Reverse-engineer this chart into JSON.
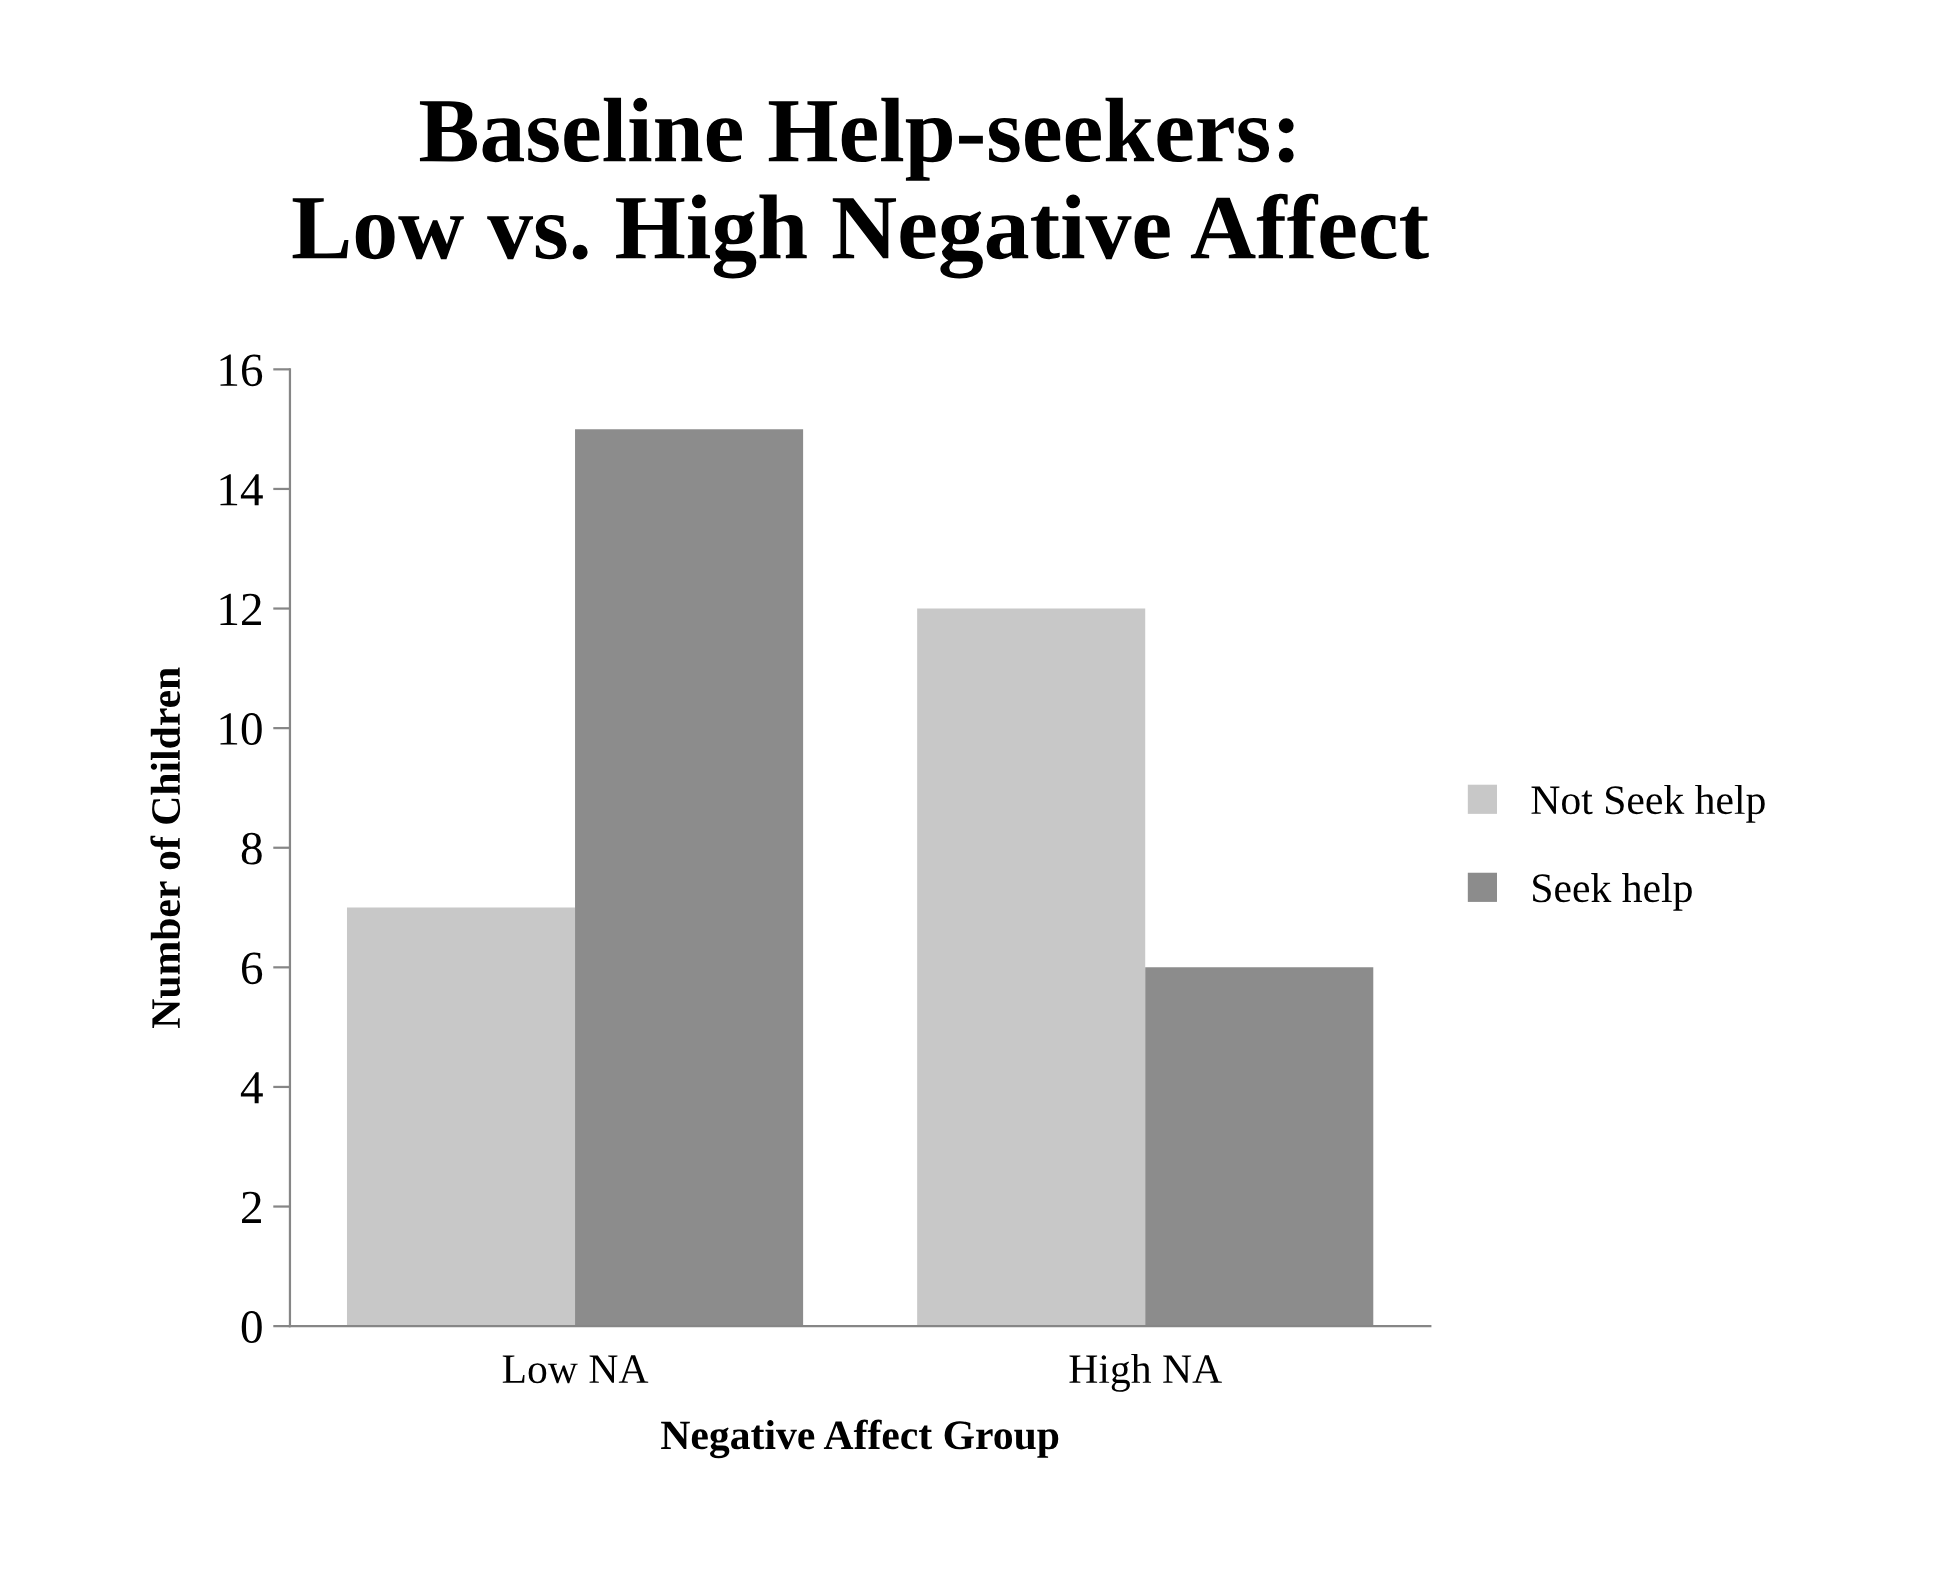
{
  "chart_data": {
    "type": "bar",
    "title": "Baseline Help-seekers:\nLow vs. High Negative Affect",
    "xlabel": "Negative Affect Group",
    "ylabel": "Number of Children",
    "categories": [
      "Low NA",
      "High NA"
    ],
    "series": [
      {
        "name": "Not Seek help",
        "color": "#c8c8c8",
        "values": [
          7,
          12
        ]
      },
      {
        "name": "Seek help",
        "color": "#8c8c8c",
        "values": [
          15,
          6
        ]
      }
    ],
    "ylim": [
      0,
      16
    ],
    "yticks": [
      0,
      2,
      4,
      6,
      8,
      10,
      12,
      14,
      16
    ],
    "grid": false,
    "legend": "right"
  }
}
